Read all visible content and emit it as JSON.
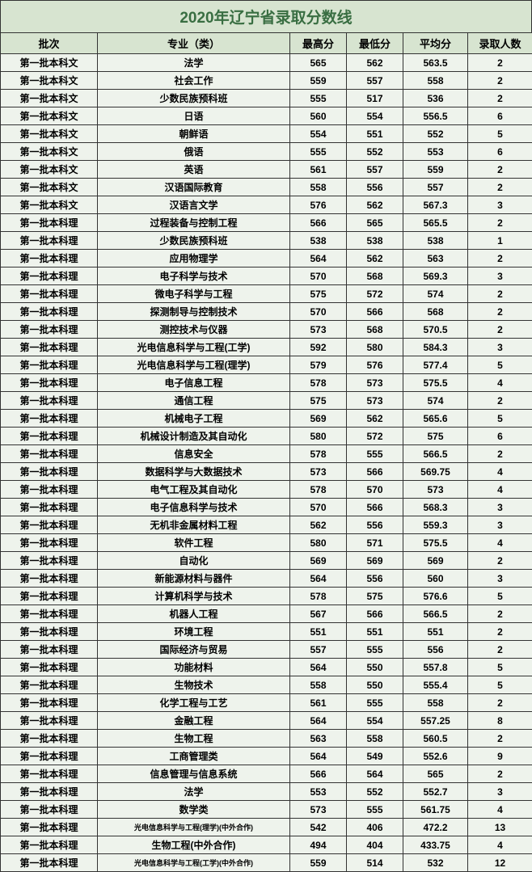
{
  "title": "2020年辽宁省录取分数线",
  "headers": {
    "batch": "批次",
    "major": "专业（类）",
    "high": "最高分",
    "low": "最低分",
    "avg": "平均分",
    "count": "录取人数"
  },
  "rows": [
    {
      "batch": "第一批本科文",
      "major": "法学",
      "high": "565",
      "low": "562",
      "avg": "563.5",
      "count": "2",
      "small": false
    },
    {
      "batch": "第一批本科文",
      "major": "社会工作",
      "high": "559",
      "low": "557",
      "avg": "558",
      "count": "2",
      "small": false
    },
    {
      "batch": "第一批本科文",
      "major": "少数民族预科班",
      "high": "555",
      "low": "517",
      "avg": "536",
      "count": "2",
      "small": false
    },
    {
      "batch": "第一批本科文",
      "major": "日语",
      "high": "560",
      "low": "554",
      "avg": "556.5",
      "count": "6",
      "small": false
    },
    {
      "batch": "第一批本科文",
      "major": "朝鲜语",
      "high": "554",
      "low": "551",
      "avg": "552",
      "count": "5",
      "small": false
    },
    {
      "batch": "第一批本科文",
      "major": "俄语",
      "high": "555",
      "low": "552",
      "avg": "553",
      "count": "6",
      "small": false
    },
    {
      "batch": "第一批本科文",
      "major": "英语",
      "high": "561",
      "low": "557",
      "avg": "559",
      "count": "2",
      "small": false
    },
    {
      "batch": "第一批本科文",
      "major": "汉语国际教育",
      "high": "558",
      "low": "556",
      "avg": "557",
      "count": "2",
      "small": false
    },
    {
      "batch": "第一批本科文",
      "major": "汉语言文学",
      "high": "576",
      "low": "562",
      "avg": "567.3",
      "count": "3",
      "small": false
    },
    {
      "batch": "第一批本科理",
      "major": "过程装备与控制工程",
      "high": "566",
      "low": "565",
      "avg": "565.5",
      "count": "2",
      "small": false
    },
    {
      "batch": "第一批本科理",
      "major": "少数民族预科班",
      "high": "538",
      "low": "538",
      "avg": "538",
      "count": "1",
      "small": false
    },
    {
      "batch": "第一批本科理",
      "major": "应用物理学",
      "high": "564",
      "low": "562",
      "avg": "563",
      "count": "2",
      "small": false
    },
    {
      "batch": "第一批本科理",
      "major": "电子科学与技术",
      "high": "570",
      "low": "568",
      "avg": "569.3",
      "count": "3",
      "small": false
    },
    {
      "batch": "第一批本科理",
      "major": "微电子科学与工程",
      "high": "575",
      "low": "572",
      "avg": "574",
      "count": "2",
      "small": false
    },
    {
      "batch": "第一批本科理",
      "major": "探测制导与控制技术",
      "high": "570",
      "low": "566",
      "avg": "568",
      "count": "2",
      "small": false
    },
    {
      "batch": "第一批本科理",
      "major": "测控技术与仪器",
      "high": "573",
      "low": "568",
      "avg": "570.5",
      "count": "2",
      "small": false
    },
    {
      "batch": "第一批本科理",
      "major": "光电信息科学与工程(工学)",
      "high": "592",
      "low": "580",
      "avg": "584.3",
      "count": "3",
      "small": false
    },
    {
      "batch": "第一批本科理",
      "major": "光电信息科学与工程(理学)",
      "high": "579",
      "low": "576",
      "avg": "577.4",
      "count": "5",
      "small": false
    },
    {
      "batch": "第一批本科理",
      "major": "电子信息工程",
      "high": "578",
      "low": "573",
      "avg": "575.5",
      "count": "4",
      "small": false
    },
    {
      "batch": "第一批本科理",
      "major": "通信工程",
      "high": "575",
      "low": "573",
      "avg": "574",
      "count": "2",
      "small": false
    },
    {
      "batch": "第一批本科理",
      "major": "机械电子工程",
      "high": "569",
      "low": "562",
      "avg": "565.6",
      "count": "5",
      "small": false
    },
    {
      "batch": "第一批本科理",
      "major": "机械设计制造及其自动化",
      "high": "580",
      "low": "572",
      "avg": "575",
      "count": "6",
      "small": false
    },
    {
      "batch": "第一批本科理",
      "major": "信息安全",
      "high": "578",
      "low": "555",
      "avg": "566.5",
      "count": "2",
      "small": false
    },
    {
      "batch": "第一批本科理",
      "major": "数据科学与大数据技术",
      "high": "573",
      "low": "566",
      "avg": "569.75",
      "count": "4",
      "small": false
    },
    {
      "batch": "第一批本科理",
      "major": "电气工程及其自动化",
      "high": "578",
      "low": "570",
      "avg": "573",
      "count": "4",
      "small": false
    },
    {
      "batch": "第一批本科理",
      "major": "电子信息科学与技术",
      "high": "570",
      "low": "566",
      "avg": "568.3",
      "count": "3",
      "small": false
    },
    {
      "batch": "第一批本科理",
      "major": "无机非金属材料工程",
      "high": "562",
      "low": "556",
      "avg": "559.3",
      "count": "3",
      "small": false
    },
    {
      "batch": "第一批本科理",
      "major": "软件工程",
      "high": "580",
      "low": "571",
      "avg": "575.5",
      "count": "4",
      "small": false
    },
    {
      "batch": "第一批本科理",
      "major": "自动化",
      "high": "569",
      "low": "569",
      "avg": "569",
      "count": "2",
      "small": false
    },
    {
      "batch": "第一批本科理",
      "major": "新能源材料与器件",
      "high": "564",
      "low": "556",
      "avg": "560",
      "count": "3",
      "small": false
    },
    {
      "batch": "第一批本科理",
      "major": "计算机科学与技术",
      "high": "578",
      "low": "575",
      "avg": "576.6",
      "count": "5",
      "small": false
    },
    {
      "batch": "第一批本科理",
      "major": "机器人工程",
      "high": "567",
      "low": "566",
      "avg": "566.5",
      "count": "2",
      "small": false
    },
    {
      "batch": "第一批本科理",
      "major": "环境工程",
      "high": "551",
      "low": "551",
      "avg": "551",
      "count": "2",
      "small": false
    },
    {
      "batch": "第一批本科理",
      "major": "国际经济与贸易",
      "high": "557",
      "low": "555",
      "avg": "556",
      "count": "2",
      "small": false
    },
    {
      "batch": "第一批本科理",
      "major": "功能材料",
      "high": "564",
      "low": "550",
      "avg": "557.8",
      "count": "5",
      "small": false
    },
    {
      "batch": "第一批本科理",
      "major": "生物技术",
      "high": "558",
      "low": "550",
      "avg": "555.4",
      "count": "5",
      "small": false
    },
    {
      "batch": "第一批本科理",
      "major": "化学工程与工艺",
      "high": "561",
      "low": "555",
      "avg": "558",
      "count": "2",
      "small": false
    },
    {
      "batch": "第一批本科理",
      "major": "金融工程",
      "high": "564",
      "low": "554",
      "avg": "557.25",
      "count": "8",
      "small": false
    },
    {
      "batch": "第一批本科理",
      "major": "生物工程",
      "high": "563",
      "low": "558",
      "avg": "560.5",
      "count": "2",
      "small": false
    },
    {
      "batch": "第一批本科理",
      "major": "工商管理类",
      "high": "564",
      "low": "549",
      "avg": "552.6",
      "count": "9",
      "small": false
    },
    {
      "batch": "第一批本科理",
      "major": "信息管理与信息系统",
      "high": "566",
      "low": "564",
      "avg": "565",
      "count": "2",
      "small": false
    },
    {
      "batch": "第一批本科理",
      "major": "法学",
      "high": "553",
      "low": "552",
      "avg": "552.7",
      "count": "3",
      "small": false
    },
    {
      "batch": "第一批本科理",
      "major": "数学类",
      "high": "573",
      "low": "555",
      "avg": "561.75",
      "count": "4",
      "small": false
    },
    {
      "batch": "第一批本科理",
      "major": "光电信息科学与工程(理学)(中外合作)",
      "high": "542",
      "low": "406",
      "avg": "472.2",
      "count": "13",
      "small": true
    },
    {
      "batch": "第一批本科理",
      "major": "生物工程(中外合作)",
      "high": "494",
      "low": "404",
      "avg": "433.75",
      "count": "4",
      "small": false
    },
    {
      "batch": "第一批本科理",
      "major": "光电信息科学与工程(工学)(中外合作)",
      "high": "559",
      "low": "514",
      "avg": "532",
      "count": "12",
      "small": true
    }
  ],
  "colors": {
    "header_bg": "#d7e4d0",
    "cell_bg": "#eef3ec",
    "title_color": "#396e42",
    "border": "#333333"
  }
}
